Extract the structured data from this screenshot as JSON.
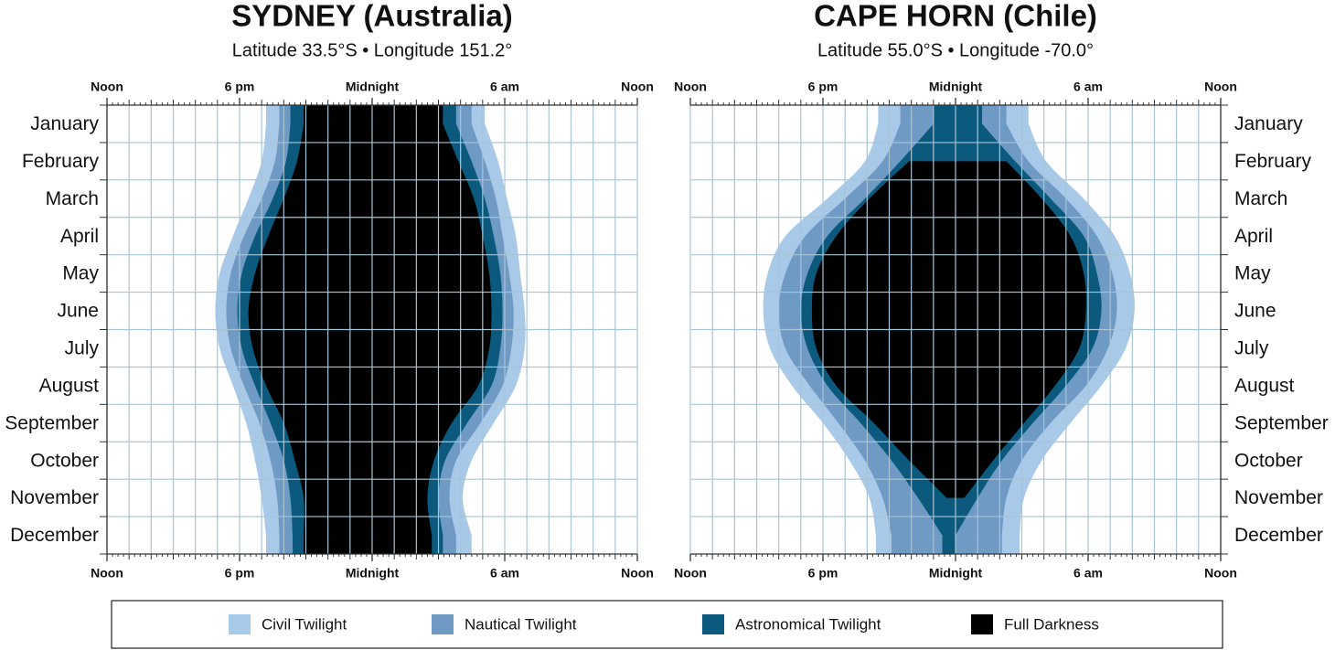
{
  "chart_data": [
    {
      "type": "range",
      "title": "SYDNEY (Australia)",
      "subtitle": "Latitude 33.5°S • Longitude 151.2°",
      "categories": [
        "January",
        "February",
        "March",
        "April",
        "May",
        "June",
        "July",
        "August",
        "September",
        "October",
        "November",
        "December"
      ],
      "xlim": [
        0,
        24
      ],
      "xticks": [
        {
          "value": 0,
          "label": "Noon"
        },
        {
          "value": 6,
          "label": "6 pm"
        },
        {
          "value": 12,
          "label": "Midnight"
        },
        {
          "value": 18,
          "label": "6 am"
        },
        {
          "value": 24,
          "label": "Noon"
        }
      ],
      "grid": true,
      "series": [
        {
          "name": "Civil Twilight",
          "color": "#a8c9e8",
          "start": [
            7.2,
            7.0,
            6.4,
            5.7,
            5.1,
            4.9,
            5.1,
            5.7,
            6.3,
            6.7,
            7.0,
            7.2
          ],
          "end": [
            17.1,
            17.7,
            18.1,
            18.5,
            18.7,
            18.9,
            18.9,
            18.5,
            17.5,
            16.5,
            16.1,
            16.5
          ]
        },
        {
          "name": "Nautical Twilight",
          "color": "#6f9ac4",
          "start": [
            7.8,
            7.6,
            7.0,
            6.2,
            5.6,
            5.4,
            5.6,
            6.2,
            6.9,
            7.4,
            7.7,
            7.8
          ],
          "end": [
            16.5,
            17.1,
            17.6,
            17.9,
            18.2,
            18.4,
            18.3,
            17.9,
            16.9,
            15.8,
            15.5,
            15.8
          ]
        },
        {
          "name": "Astronomical Twilight",
          "color": "#0b5a7d",
          "start": [
            8.3,
            8.1,
            7.5,
            6.7,
            6.1,
            5.9,
            6.1,
            6.7,
            7.4,
            8.0,
            8.3,
            8.4
          ],
          "end": [
            15.8,
            16.5,
            17.1,
            17.5,
            17.8,
            17.9,
            17.8,
            17.4,
            16.3,
            15.3,
            15.0,
            15.2
          ]
        },
        {
          "name": "Full Darkness",
          "color": "#000000",
          "start": [
            8.9,
            8.6,
            8.0,
            7.3,
            6.7,
            6.4,
            6.6,
            7.2,
            8.0,
            8.5,
            8.9,
            8.9
          ],
          "end": [
            15.2,
            15.9,
            16.6,
            17.0,
            17.3,
            17.4,
            17.3,
            16.8,
            15.6,
            14.8,
            14.5,
            14.7
          ]
        }
      ]
    },
    {
      "type": "range",
      "title": "CAPE HORN (Chile)",
      "subtitle": "Latitude 55.0°S • Longitude -70.0°",
      "categories": [
        "January",
        "February",
        "March",
        "April",
        "May",
        "June",
        "July",
        "August",
        "September",
        "October",
        "November",
        "December"
      ],
      "xlim": [
        0,
        24
      ],
      "xticks": [
        {
          "value": 0,
          "label": "Noon"
        },
        {
          "value": 6,
          "label": "6 pm"
        },
        {
          "value": 12,
          "label": "Midnight"
        },
        {
          "value": 18,
          "label": "6 am"
        },
        {
          "value": 24,
          "label": "Noon"
        }
      ],
      "grid": true,
      "series": [
        {
          "name": "Civil Twilight",
          "color": "#a8c9e8",
          "start": [
            8.5,
            7.9,
            6.2,
            4.3,
            3.5,
            3.3,
            3.6,
            4.6,
            6.0,
            7.2,
            8.1,
            8.4
          ],
          "end": [
            15.3,
            16.1,
            17.8,
            19.2,
            19.9,
            20.1,
            19.7,
            18.6,
            17.2,
            15.9,
            15.1,
            14.9
          ]
        },
        {
          "name": "Nautical Twilight",
          "color": "#6f9ac4",
          "start": [
            9.5,
            8.7,
            7.0,
            5.2,
            4.3,
            4.0,
            4.3,
            5.4,
            6.7,
            7.9,
            8.7,
            9.1
          ],
          "end": [
            14.3,
            15.3,
            17.0,
            18.4,
            19.1,
            19.3,
            18.9,
            17.9,
            16.3,
            15.0,
            14.3,
            14.1
          ]
        },
        {
          "name": "Astronomical Twilight",
          "color": "#0b5a7d",
          "start": [
            11.0,
            9.5,
            7.9,
            6.2,
            5.3,
            5.0,
            5.3,
            6.2,
            7.7,
            9.1,
            10.3,
            11.4
          ],
          "end": [
            13.2,
            14.7,
            16.3,
            17.8,
            18.4,
            18.6,
            18.2,
            17.0,
            15.5,
            14.1,
            13.0,
            12.0
          ]
        },
        {
          "name": "Full Darkness",
          "color": "#000000",
          "start": [
            null,
            9.9,
            8.1,
            6.6,
            5.7,
            5.5,
            5.7,
            6.6,
            8.3,
            9.9,
            11.6,
            null
          ],
          "end": [
            null,
            14.3,
            15.9,
            17.2,
            17.8,
            17.9,
            17.6,
            16.5,
            15.1,
            13.7,
            12.4,
            null
          ]
        }
      ]
    }
  ]
}
